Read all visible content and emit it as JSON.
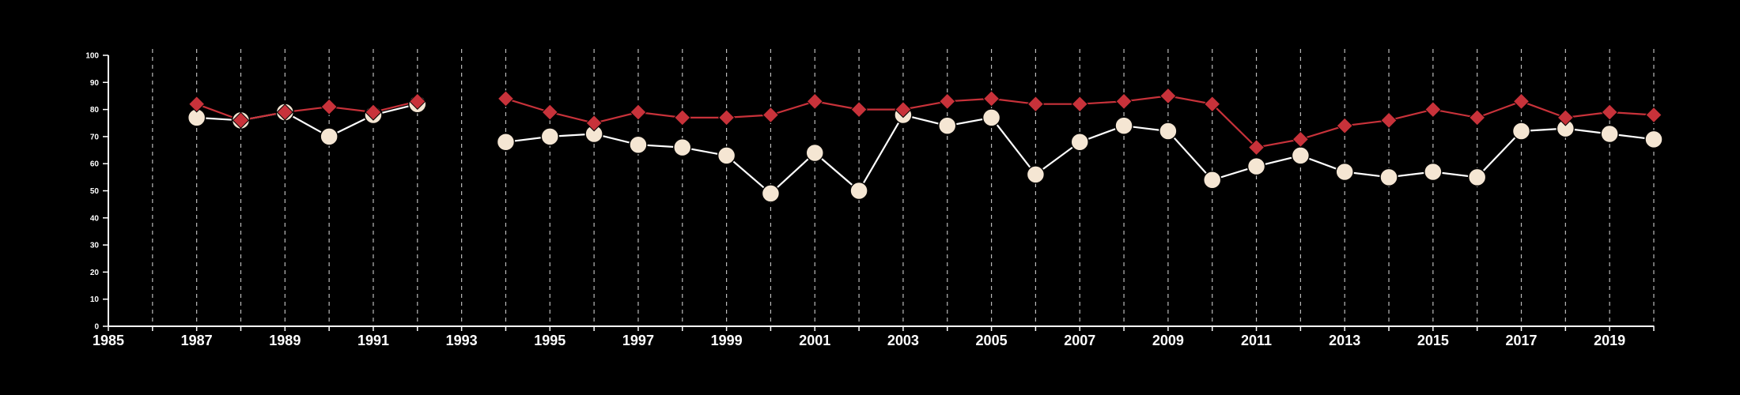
{
  "chart_data": {
    "type": "line",
    "title": "",
    "xlabel": "",
    "ylabel": "",
    "xlim": [
      1985,
      2020
    ],
    "ylim": [
      0,
      100
    ],
    "x_ticks": [
      1985,
      1987,
      1989,
      1991,
      1993,
      1995,
      1997,
      1999,
      2001,
      2003,
      2005,
      2007,
      2009,
      2011,
      2013,
      2015,
      2017,
      2019
    ],
    "x_tick_labels": [
      "1985",
      "1987",
      "1989",
      "1991",
      "1993",
      "1995",
      "1997",
      "1999",
      "2001",
      "2003",
      "2005",
      "2007",
      "2009",
      "2011",
      "2013",
      "2015",
      "2017",
      "2019"
    ],
    "y_ticks": [
      0,
      10,
      20,
      30,
      40,
      50,
      60,
      70,
      80,
      90,
      100
    ],
    "y_tick_labels": [
      "0",
      "10",
      "20",
      "30",
      "40",
      "50",
      "60",
      "70",
      "80",
      "90",
      "100"
    ],
    "grid": "vertical dashed lines at each year",
    "legend": "none",
    "series": [
      {
        "marker": "circle",
        "color": "#f5e6d3",
        "line_color": "#ffffff",
        "points": [
          [
            1987,
            77
          ],
          [
            1988,
            76
          ],
          [
            1989,
            79
          ],
          [
            1990,
            70
          ],
          [
            1991,
            78
          ],
          [
            1992,
            82
          ],
          [
            1994,
            68
          ],
          [
            1995,
            70
          ],
          [
            1996,
            71
          ],
          [
            1997,
            67
          ],
          [
            1998,
            66
          ],
          [
            1999,
            63
          ],
          [
            2000,
            49
          ],
          [
            2001,
            64
          ],
          [
            2002,
            50
          ],
          [
            2003,
            78
          ],
          [
            2004,
            74
          ],
          [
            2005,
            77
          ],
          [
            2006,
            56
          ],
          [
            2007,
            68
          ],
          [
            2008,
            74
          ],
          [
            2009,
            72
          ],
          [
            2010,
            54
          ],
          [
            2011,
            59
          ],
          [
            2012,
            63
          ],
          [
            2013,
            57
          ],
          [
            2014,
            55
          ],
          [
            2015,
            57
          ],
          [
            2016,
            55
          ],
          [
            2017,
            72
          ],
          [
            2018,
            73
          ],
          [
            2019,
            71
          ],
          [
            2020,
            69
          ]
        ]
      },
      {
        "marker": "diamond",
        "color": "#c8323a",
        "line_color": "#c8323a",
        "points": [
          [
            1987,
            82
          ],
          [
            1988,
            76
          ],
          [
            1989,
            79
          ],
          [
            1990,
            81
          ],
          [
            1991,
            79
          ],
          [
            1992,
            83
          ],
          [
            1994,
            84
          ],
          [
            1995,
            79
          ],
          [
            1996,
            75
          ],
          [
            1997,
            79
          ],
          [
            1998,
            77
          ],
          [
            1999,
            77
          ],
          [
            2000,
            78
          ],
          [
            2001,
            83
          ],
          [
            2002,
            80
          ],
          [
            2003,
            80
          ],
          [
            2004,
            83
          ],
          [
            2005,
            84
          ],
          [
            2006,
            82
          ],
          [
            2007,
            82
          ],
          [
            2008,
            83
          ],
          [
            2009,
            85
          ],
          [
            2010,
            82
          ],
          [
            2011,
            66
          ],
          [
            2012,
            69
          ],
          [
            2013,
            74
          ],
          [
            2014,
            76
          ],
          [
            2015,
            80
          ],
          [
            2016,
            77
          ],
          [
            2017,
            83
          ],
          [
            2018,
            77
          ],
          [
            2019,
            79
          ],
          [
            2020,
            78
          ]
        ]
      }
    ]
  }
}
